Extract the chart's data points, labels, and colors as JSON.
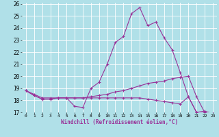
{
  "title": "",
  "xlabel": "Windchill (Refroidissement éolien,°C)",
  "ylabel": "",
  "bg_color": "#b0e0e8",
  "line_color": "#993399",
  "grid_color": "#ffffff",
  "xlim": [
    -0.5,
    23.5
  ],
  "ylim": [
    17,
    26
  ],
  "yticks": [
    17,
    18,
    19,
    20,
    21,
    22,
    23,
    24,
    25,
    26
  ],
  "xticks": [
    0,
    1,
    2,
    3,
    4,
    5,
    6,
    7,
    8,
    9,
    10,
    11,
    12,
    13,
    14,
    15,
    16,
    17,
    18,
    19,
    20,
    21,
    22,
    23
  ],
  "series": [
    [
      18.8,
      18.5,
      18.2,
      18.2,
      18.2,
      18.2,
      17.5,
      17.4,
      19.0,
      19.5,
      21.0,
      22.8,
      23.3,
      25.2,
      25.7,
      24.2,
      24.5,
      23.2,
      22.2,
      20.3,
      18.3,
      17.0,
      17.1,
      16.9
    ],
    [
      18.8,
      18.4,
      18.1,
      18.1,
      18.2,
      18.2,
      18.2,
      18.2,
      18.3,
      18.4,
      18.5,
      18.7,
      18.8,
      19.0,
      19.2,
      19.4,
      19.5,
      19.6,
      19.8,
      19.9,
      20.0,
      18.3,
      17.0,
      16.9
    ],
    [
      18.8,
      18.4,
      18.1,
      18.1,
      18.2,
      18.2,
      18.2,
      18.2,
      18.2,
      18.2,
      18.2,
      18.2,
      18.2,
      18.2,
      18.2,
      18.1,
      18.0,
      17.9,
      17.8,
      17.7,
      18.3,
      17.0,
      17.0,
      16.9
    ]
  ]
}
